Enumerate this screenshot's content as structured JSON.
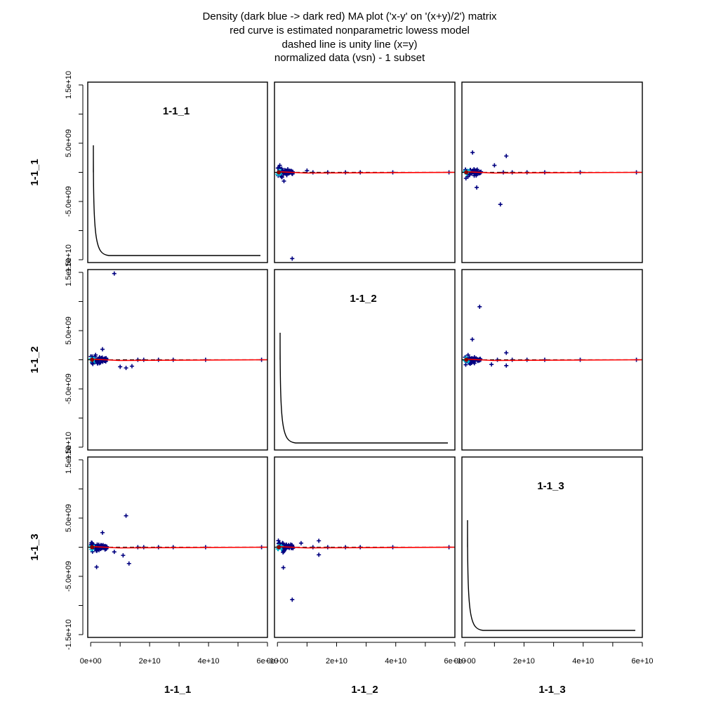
{
  "title_lines": [
    "Density (dark blue -> dark red) MA plot ('x-y' on '(x+y)/2') matrix",
    "red curve is estimated nonparametric lowess model",
    "dashed line is unity line (x=y)",
    "normalized data (vsn) - 1 subset"
  ],
  "colors": {
    "points": "#000080",
    "dense_points": "#00bcd4",
    "lowess": "#ff0000",
    "unity": "#000000",
    "density_curve": "#000000",
    "frame": "#000000"
  },
  "chart_data": {
    "type": "scatter",
    "subtitle": "MA plot matrix",
    "variables": [
      "1-1_1",
      "1-1_2",
      "1-1_3"
    ],
    "x_axis": {
      "range": [
        -1000000000.0,
        60000000000.0
      ],
      "ticks": [
        0,
        20000000000.0,
        40000000000.0,
        60000000000.0
      ],
      "tick_labels": [
        "0e+00",
        "2e+10",
        "4e+10",
        "6e+10"
      ]
    },
    "y_axis": {
      "range": [
        -15000000000.0,
        15000000000.0
      ],
      "ticks": [
        -15000000000.0,
        -10000000000.0,
        -5000000000.0,
        0,
        5000000000.0,
        10000000000.0,
        15000000000.0
      ],
      "tick_labels": [
        "-1.5e+10",
        "",
        "-5.0e+09",
        "",
        "5.0e+09",
        "",
        "1.5e+10"
      ]
    },
    "panels": [
      {
        "row": 0,
        "col": 0,
        "kind": "density",
        "label": "1-1_1"
      },
      {
        "row": 0,
        "col": 1,
        "kind": "ma",
        "x_var": "1-1_2",
        "y_var": "1-1_1",
        "outliers": [
          [
            5000000000.0,
            -14800000000.0
          ],
          [
            12000000000.0,
            0
          ],
          [
            17000000000.0,
            0
          ],
          [
            23000000000.0,
            0
          ],
          [
            28000000000.0,
            0
          ],
          [
            39000000000.0,
            0
          ],
          [
            58000000000.0,
            0
          ],
          [
            10000000000.0,
            300000000.0
          ],
          [
            800000000.0,
            1200000000.0
          ],
          [
            2200000000.0,
            -1500000000.0
          ]
        ]
      },
      {
        "row": 0,
        "col": 2,
        "kind": "ma",
        "x_var": "1-1_3",
        "y_var": "1-1_1",
        "outliers": [
          [
            2600000000.0,
            3400000000.0
          ],
          [
            14000000000.0,
            2800000000.0
          ],
          [
            12000000000.0,
            -5500000000.0
          ],
          [
            4000000000.0,
            -2600000000.0
          ],
          [
            10000000000.0,
            1200000000.0
          ],
          [
            13000000000.0,
            0
          ],
          [
            16000000000.0,
            0
          ],
          [
            21000000000.0,
            0
          ],
          [
            27000000000.0,
            0
          ],
          [
            39000000000.0,
            0
          ],
          [
            58000000000.0,
            0
          ]
        ]
      },
      {
        "row": 1,
        "col": 0,
        "kind": "ma",
        "x_var": "1-1_1",
        "y_var": "1-1_2",
        "outliers": [
          [
            8000000000.0,
            14800000000.0
          ],
          [
            12000000000.0,
            -1400000000.0
          ],
          [
            14000000000.0,
            -1100000000.0
          ],
          [
            10000000000.0,
            -1200000000.0
          ],
          [
            16000000000.0,
            0
          ],
          [
            18000000000.0,
            0
          ],
          [
            23000000000.0,
            0
          ],
          [
            28000000000.0,
            0
          ],
          [
            39000000000.0,
            0
          ],
          [
            58000000000.0,
            0
          ],
          [
            4000000000.0,
            1800000000.0
          ]
        ]
      },
      {
        "row": 1,
        "col": 1,
        "kind": "density",
        "label": "1-1_2"
      },
      {
        "row": 1,
        "col": 2,
        "kind": "ma",
        "x_var": "1-1_3",
        "y_var": "1-1_2",
        "outliers": [
          [
            5000000000.0,
            9100000000.0
          ],
          [
            2500000000.0,
            3500000000.0
          ],
          [
            14000000000.0,
            1200000000.0
          ],
          [
            14000000000.0,
            -1000000000.0
          ],
          [
            9000000000.0,
            -800000000.0
          ],
          [
            11000000000.0,
            0
          ],
          [
            16000000000.0,
            0
          ],
          [
            21000000000.0,
            0
          ],
          [
            27000000000.0,
            0
          ],
          [
            39000000000.0,
            0
          ],
          [
            58000000000.0,
            0
          ]
        ]
      },
      {
        "row": 2,
        "col": 0,
        "kind": "ma",
        "x_var": "1-1_1",
        "y_var": "1-1_3",
        "outliers": [
          [
            12000000000.0,
            5400000000.0
          ],
          [
            4000000000.0,
            2500000000.0
          ],
          [
            2000000000.0,
            -3400000000.0
          ],
          [
            13000000000.0,
            -2800000000.0
          ],
          [
            11000000000.0,
            -1400000000.0
          ],
          [
            8000000000.0,
            -800000000.0
          ],
          [
            16000000000.0,
            0
          ],
          [
            18000000000.0,
            0
          ],
          [
            23000000000.0,
            0
          ],
          [
            28000000000.0,
            0
          ],
          [
            39000000000.0,
            0
          ],
          [
            58000000000.0,
            0
          ]
        ]
      },
      {
        "row": 2,
        "col": 1,
        "kind": "ma",
        "x_var": "1-1_2",
        "y_var": "1-1_3",
        "outliers": [
          [
            5000000000.0,
            -9000000000.0
          ],
          [
            2000000000.0,
            -3500000000.0
          ],
          [
            14000000000.0,
            1100000000.0
          ],
          [
            14000000000.0,
            -1300000000.0
          ],
          [
            12000000000.0,
            0
          ],
          [
            17000000000.0,
            0
          ],
          [
            23000000000.0,
            0
          ],
          [
            28000000000.0,
            0
          ],
          [
            39000000000.0,
            0
          ],
          [
            58000000000.0,
            0
          ],
          [
            8000000000.0,
            700000000.0
          ]
        ]
      },
      {
        "row": 2,
        "col": 2,
        "kind": "density",
        "label": "1-1_3"
      }
    ]
  }
}
